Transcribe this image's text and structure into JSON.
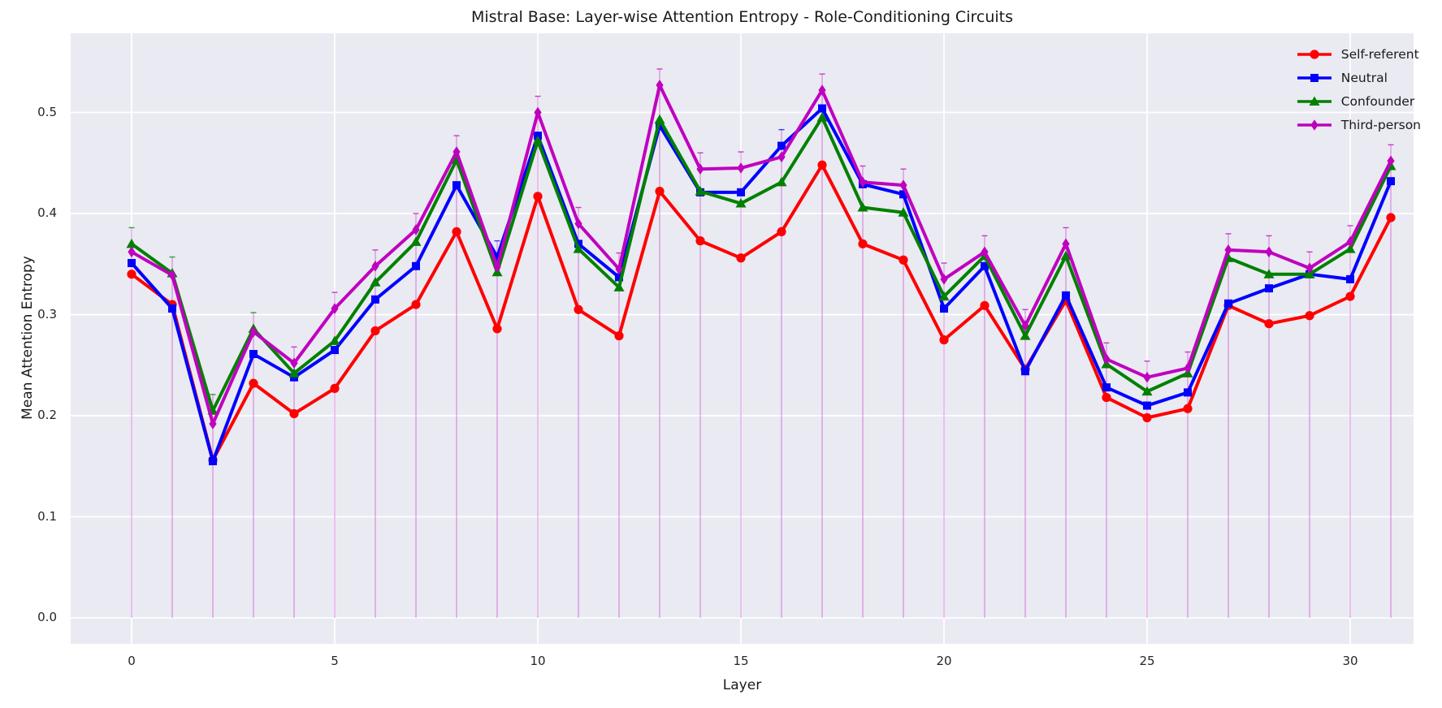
{
  "title": "Mistral Base: Layer-wise Attention Entropy - Role-Conditioning Circuits",
  "chart_data": {
    "type": "line",
    "title": "Mistral Base: Layer-wise Attention Entropy - Role-Conditioning Circuits",
    "xlabel": "Layer",
    "ylabel": "Mean Attention Entropy",
    "x": [
      0,
      1,
      2,
      3,
      4,
      5,
      6,
      7,
      8,
      9,
      10,
      11,
      12,
      13,
      14,
      15,
      16,
      17,
      18,
      19,
      20,
      21,
      22,
      23,
      24,
      25,
      26,
      27,
      28,
      29,
      30,
      31
    ],
    "xtick_values": [
      0,
      5,
      10,
      15,
      20,
      25,
      30
    ],
    "xtick_labels": [
      "0",
      "5",
      "10",
      "15",
      "20",
      "25",
      "30"
    ],
    "ytick_values": [
      0.0,
      0.1,
      0.2,
      0.3,
      0.4,
      0.5
    ],
    "ytick_labels": [
      "0.0",
      "0.1",
      "0.2",
      "0.3",
      "0.4",
      "0.5"
    ],
    "xlim": [
      -1.5,
      31.6
    ],
    "ylim": [
      -0.026,
      0.578
    ],
    "grid": true,
    "legend_position": "upper right",
    "series": [
      {
        "name": "Self-referent",
        "color": "#ff0000",
        "marker": "circle",
        "values": [
          0.34,
          0.31,
          0.156,
          0.232,
          0.202,
          0.227,
          0.284,
          0.31,
          0.382,
          0.286,
          0.417,
          0.305,
          0.279,
          0.422,
          0.373,
          0.356,
          0.382,
          0.448,
          0.37,
          0.354,
          0.275,
          0.309,
          0.246,
          0.314,
          0.218,
          0.198,
          0.207,
          0.309,
          0.291,
          0.299,
          0.318,
          0.396
        ]
      },
      {
        "name": "Neutral",
        "color": "#0000ff",
        "marker": "square",
        "values": [
          0.351,
          0.306,
          0.155,
          0.261,
          0.238,
          0.265,
          0.315,
          0.348,
          0.428,
          0.357,
          0.477,
          0.37,
          0.337,
          0.487,
          0.421,
          0.421,
          0.467,
          0.504,
          0.429,
          0.419,
          0.306,
          0.348,
          0.244,
          0.319,
          0.228,
          0.21,
          0.223,
          0.311,
          0.326,
          0.34,
          0.335,
          0.432
        ]
      },
      {
        "name": "Confounder",
        "color": "#008000",
        "marker": "triangle",
        "values": [
          0.37,
          0.341,
          0.205,
          0.286,
          0.242,
          0.274,
          0.332,
          0.372,
          0.453,
          0.342,
          0.472,
          0.365,
          0.327,
          0.493,
          0.422,
          0.41,
          0.431,
          0.495,
          0.406,
          0.401,
          0.318,
          0.358,
          0.279,
          0.358,
          0.251,
          0.224,
          0.242,
          0.356,
          0.34,
          0.34,
          0.365,
          0.447
        ]
      },
      {
        "name": "Third-person",
        "color": "#bf00bf",
        "marker": "diamond",
        "values": [
          0.362,
          0.339,
          0.192,
          0.283,
          0.252,
          0.306,
          0.348,
          0.384,
          0.461,
          0.347,
          0.5,
          0.39,
          0.345,
          0.527,
          0.444,
          0.445,
          0.456,
          0.522,
          0.431,
          0.428,
          0.335,
          0.362,
          0.289,
          0.37,
          0.256,
          0.238,
          0.247,
          0.364,
          0.362,
          0.346,
          0.372,
          0.452
        ]
      }
    ],
    "error_stems": {
      "from_value": 0.0,
      "cap_offset": 0.016,
      "color": "#bf00bf",
      "opacity": 0.38
    }
  },
  "colors": {
    "figure_background": "#ffffff",
    "axes_background": "#eaeaf2",
    "grid": "#ffffff",
    "tick_text": "#262626",
    "title_text": "#1a1a1a"
  }
}
